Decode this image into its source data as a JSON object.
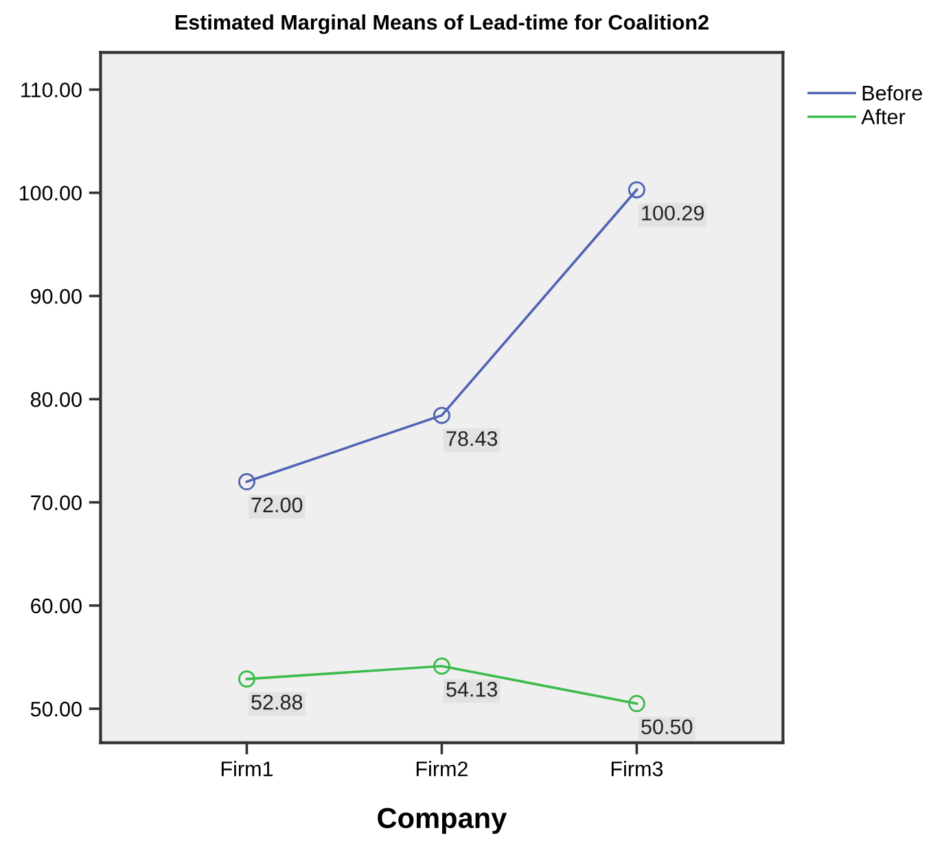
{
  "chart_data": {
    "type": "line",
    "title": "Estimated Marginal Means of Lead-time for Coalition2",
    "xlabel": "Company",
    "categories": [
      "Firm1",
      "Firm2",
      "Firm3"
    ],
    "series": [
      {
        "name": "Before",
        "color": "#5064b4",
        "values": [
          72.0,
          78.43,
          100.29
        ],
        "value_labels": [
          "72.00",
          "78.43",
          "100.29"
        ]
      },
      {
        "name": "After",
        "color": "#3cbc4c",
        "values": [
          52.88,
          54.13,
          50.5
        ],
        "value_labels": [
          "52.88",
          "54.13",
          "50.50"
        ]
      }
    ],
    "ylim": [
      46.7,
      113.6
    ],
    "yticks": [
      {
        "value": 50,
        "label": "50.00"
      },
      {
        "value": 60,
        "label": "60.00"
      },
      {
        "value": 70,
        "label": "70.00"
      },
      {
        "value": 80,
        "label": "80.00"
      },
      {
        "value": 90,
        "label": "90.00"
      },
      {
        "value": 100,
        "label": "100.00"
      },
      {
        "value": 110,
        "label": "110.00"
      }
    ],
    "marker": "circle",
    "line_style": "solid",
    "grid": false,
    "legend": "top right"
  }
}
